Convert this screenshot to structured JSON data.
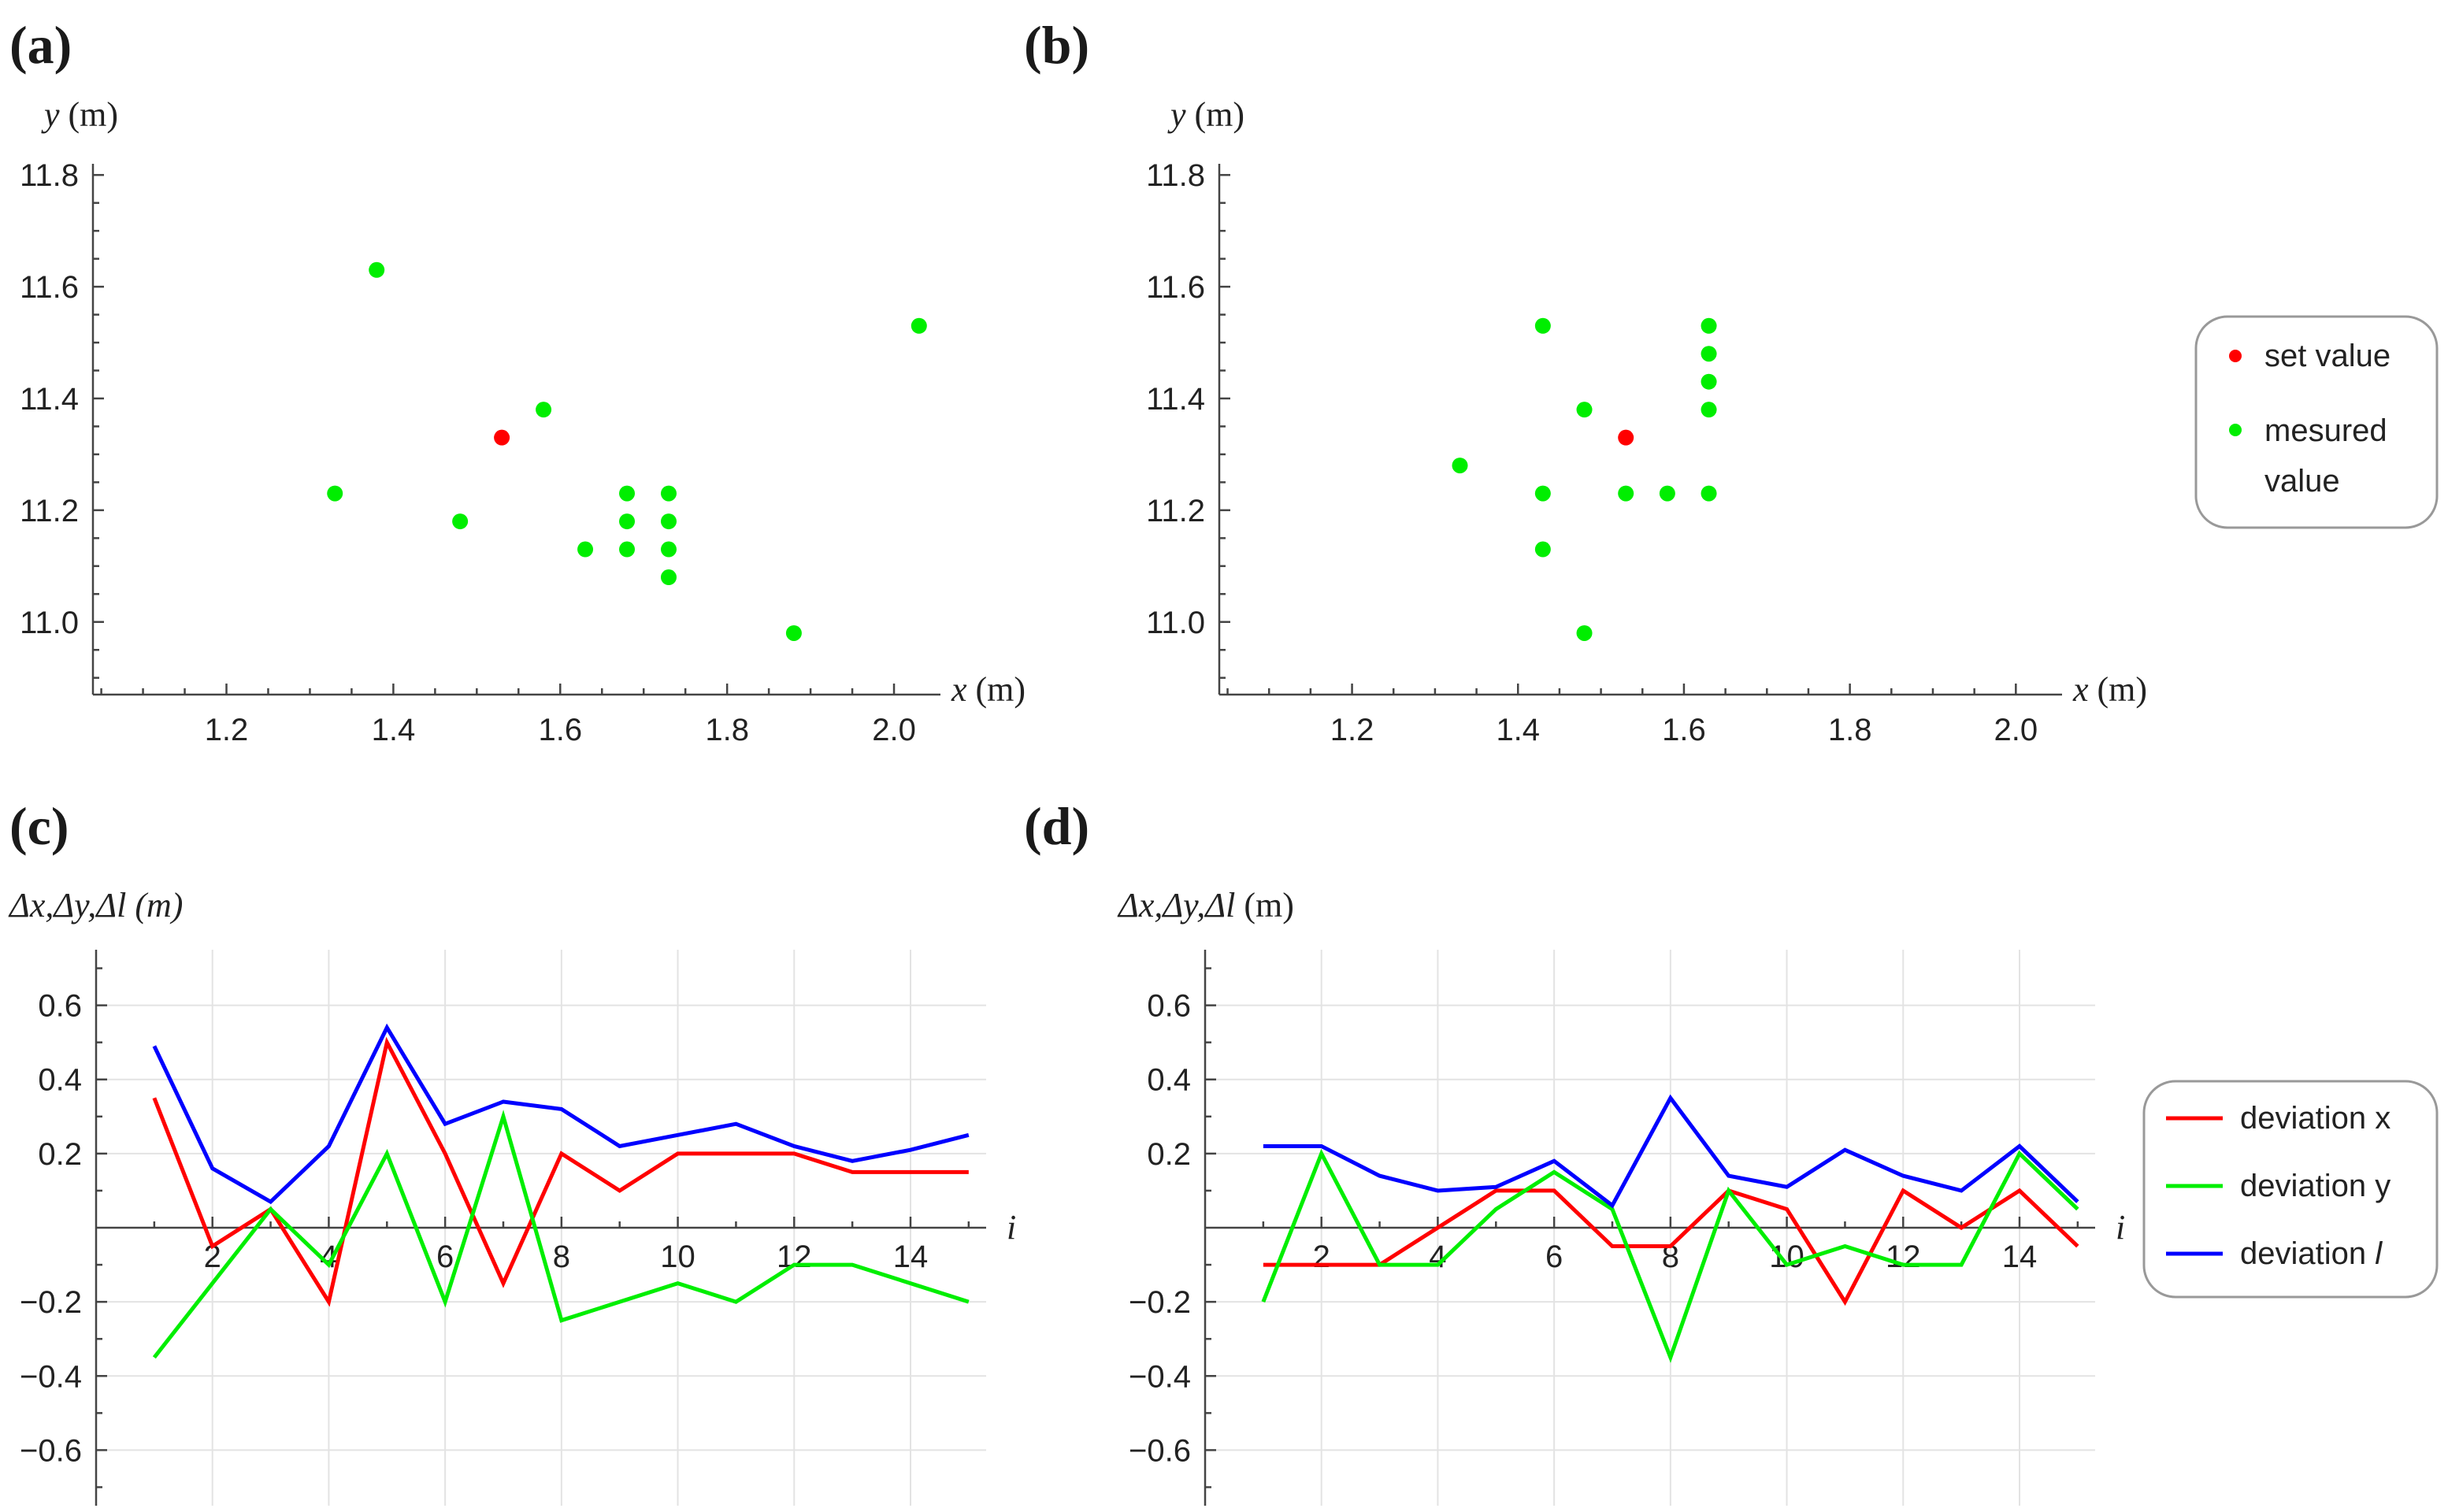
{
  "panels": [
    {
      "label": "(a)"
    },
    {
      "label": "(b)"
    },
    {
      "label": "(c)"
    },
    {
      "label": "(d)"
    }
  ],
  "legend_scatter": [
    {
      "label": "set value",
      "color": "#ff0000"
    },
    {
      "label": "mesured",
      "label2": "value",
      "color": "#00ee00"
    }
  ],
  "legend_lines": [
    {
      "label": "deviation x",
      "color": "#ff0000"
    },
    {
      "label": "deviation y",
      "color": "#00ee00"
    },
    {
      "label": "deviation ",
      "label_italic": "l",
      "color": "#0000ff"
    }
  ],
  "chart_data": [
    {
      "panel": "(a)",
      "type": "scatter",
      "xlabel": "x (m)",
      "ylabel": "y (m)",
      "xlim": [
        1.04,
        2.05
      ],
      "ylim": [
        10.87,
        11.82
      ],
      "xticks": [
        "1.2",
        "1.4",
        "1.6",
        "1.8",
        "2.0"
      ],
      "yticks": [
        "11.0",
        "11.2",
        "11.4",
        "11.6",
        "11.8"
      ],
      "series": [
        {
          "name": "set value",
          "color": "#ff0000",
          "points": [
            [
              1.53,
              11.33
            ]
          ]
        },
        {
          "name": "mesured value",
          "color": "#00ee00",
          "points": [
            [
              1.38,
              11.63
            ],
            [
              2.03,
              11.53
            ],
            [
              1.58,
              11.38
            ],
            [
              1.33,
              11.23
            ],
            [
              1.48,
              11.18
            ],
            [
              1.68,
              11.23
            ],
            [
              1.68,
              11.18
            ],
            [
              1.68,
              11.13
            ],
            [
              1.63,
              11.13
            ],
            [
              1.73,
              11.23
            ],
            [
              1.73,
              11.18
            ],
            [
              1.73,
              11.13
            ],
            [
              1.73,
              11.08
            ],
            [
              1.88,
              10.98
            ]
          ]
        }
      ]
    },
    {
      "panel": "(b)",
      "type": "scatter",
      "xlabel": "x (m)",
      "ylabel": "y (m)",
      "xlim": [
        1.04,
        2.05
      ],
      "ylim": [
        10.87,
        11.82
      ],
      "xticks": [
        "1.2",
        "1.4",
        "1.6",
        "1.8",
        "2.0"
      ],
      "yticks": [
        "11.0",
        "11.2",
        "11.4",
        "11.6",
        "11.8"
      ],
      "series": [
        {
          "name": "set value",
          "color": "#ff0000",
          "points": [
            [
              1.53,
              11.33
            ]
          ]
        },
        {
          "name": "mesured value",
          "color": "#00ee00",
          "points": [
            [
              1.43,
              11.53
            ],
            [
              1.63,
              11.53
            ],
            [
              1.63,
              11.48
            ],
            [
              1.63,
              11.43
            ],
            [
              1.63,
              11.38
            ],
            [
              1.48,
              11.38
            ],
            [
              1.33,
              11.28
            ],
            [
              1.43,
              11.23
            ],
            [
              1.53,
              11.23
            ],
            [
              1.58,
              11.23
            ],
            [
              1.63,
              11.23
            ],
            [
              1.43,
              11.13
            ],
            [
              1.48,
              10.98
            ]
          ]
        }
      ]
    },
    {
      "panel": "(c)",
      "type": "line",
      "xlabel": "i",
      "ylabel": "Δx,Δy,Δl (m)",
      "xlim": [
        0,
        15.3
      ],
      "ylim": [
        -0.75,
        0.75
      ],
      "xticks": [
        "2",
        "4",
        "6",
        "8",
        "10",
        "12",
        "14"
      ],
      "yticks": [
        "−0.6",
        "−0.4",
        "−0.2",
        "0.2",
        "0.4",
        "0.6"
      ],
      "x": [
        1,
        2,
        3,
        4,
        5,
        6,
        7,
        8,
        9,
        10,
        11,
        12,
        13,
        14,
        15
      ],
      "series": [
        {
          "name": "deviation x",
          "color": "#ff0000",
          "values": [
            0.35,
            -0.05,
            0.05,
            -0.2,
            0.5,
            0.2,
            -0.15,
            0.2,
            0.1,
            0.2,
            0.2,
            0.2,
            0.15,
            0.15,
            0.15
          ]
        },
        {
          "name": "deviation y",
          "color": "#00ee00",
          "values": [
            -0.35,
            -0.15,
            0.05,
            -0.1,
            0.2,
            -0.2,
            0.3,
            -0.25,
            -0.2,
            -0.15,
            -0.2,
            -0.1,
            -0.1,
            -0.15,
            -0.2
          ]
        },
        {
          "name": "deviation l",
          "color": "#0000ff",
          "values": [
            0.49,
            0.16,
            0.07,
            0.22,
            0.54,
            0.28,
            0.34,
            0.32,
            0.22,
            0.25,
            0.28,
            0.22,
            0.18,
            0.21,
            0.25
          ]
        }
      ]
    },
    {
      "panel": "(d)",
      "type": "line",
      "xlabel": "i",
      "ylabel": "Δx,Δy,Δl (m)",
      "xlim": [
        0,
        15.3
      ],
      "ylim": [
        -0.75,
        0.75
      ],
      "xticks": [
        "2",
        "4",
        "6",
        "8",
        "10",
        "12",
        "14"
      ],
      "yticks": [
        "−0.6",
        "−0.4",
        "−0.2",
        "0.2",
        "0.4",
        "0.6"
      ],
      "x": [
        1,
        2,
        3,
        4,
        5,
        6,
        7,
        8,
        9,
        10,
        11,
        12,
        13,
        14,
        15
      ],
      "series": [
        {
          "name": "deviation x",
          "color": "#ff0000",
          "values": [
            -0.1,
            -0.1,
            -0.1,
            0.0,
            0.1,
            0.1,
            -0.05,
            -0.05,
            0.1,
            0.05,
            -0.2,
            0.1,
            0.0,
            0.1,
            -0.05
          ]
        },
        {
          "name": "deviation y",
          "color": "#00ee00",
          "values": [
            -0.2,
            0.2,
            -0.1,
            -0.1,
            0.05,
            0.15,
            0.05,
            -0.35,
            0.1,
            -0.1,
            -0.05,
            -0.1,
            -0.1,
            0.2,
            0.05
          ]
        },
        {
          "name": "deviation l",
          "color": "#0000ff",
          "values": [
            0.22,
            0.22,
            0.14,
            0.1,
            0.11,
            0.18,
            0.06,
            0.35,
            0.14,
            0.11,
            0.21,
            0.14,
            0.1,
            0.22,
            0.07
          ]
        }
      ]
    }
  ]
}
